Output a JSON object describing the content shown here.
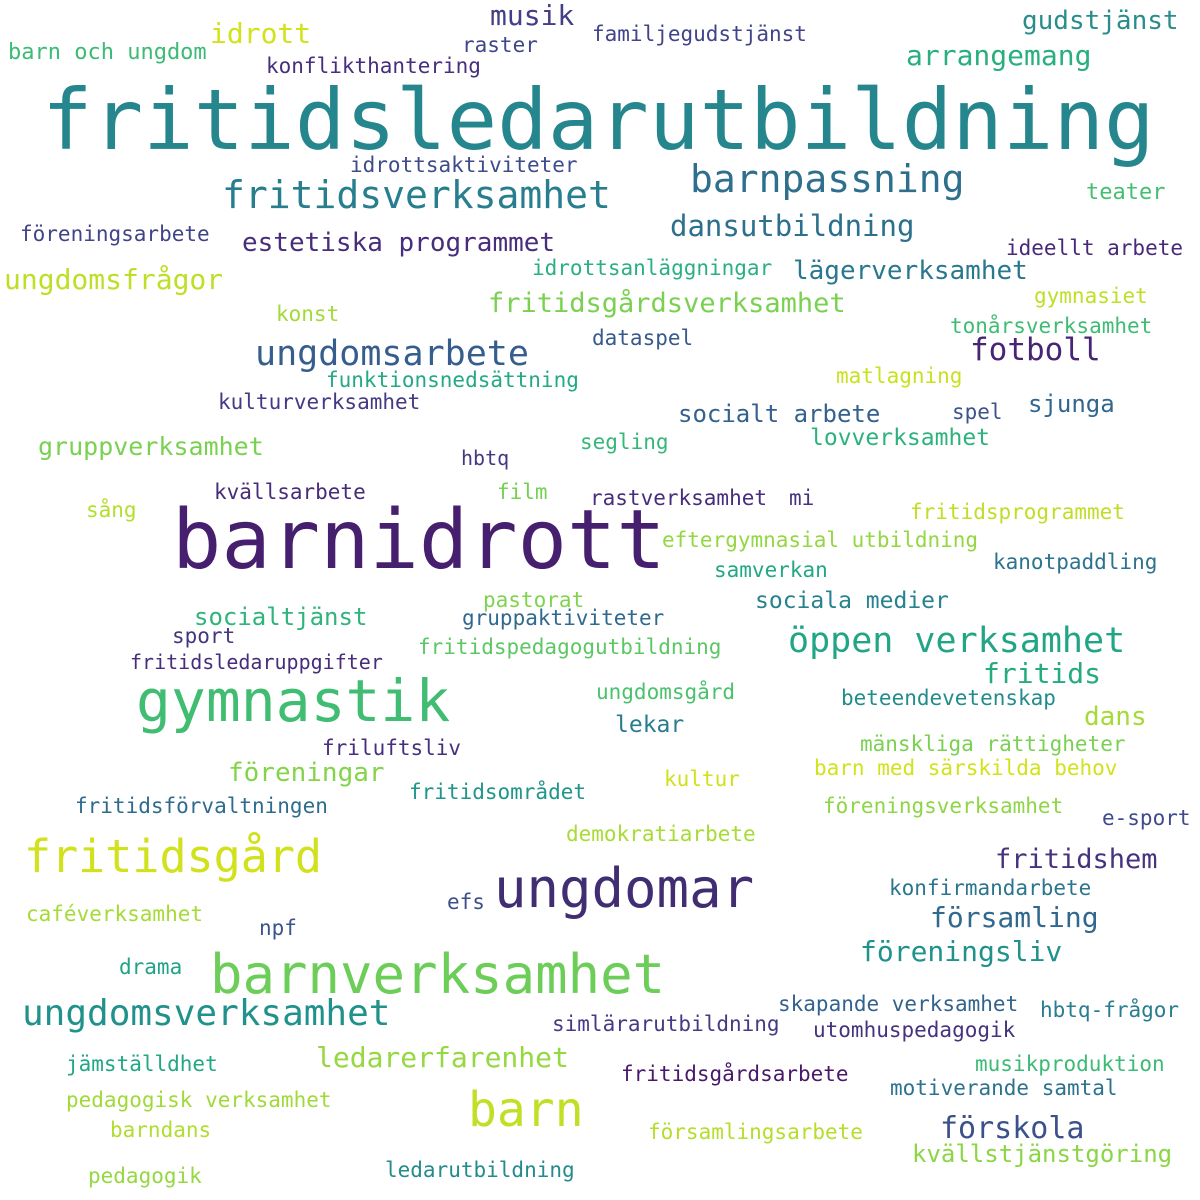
{
  "words": [
    {
      "text": "fritidsledarutbildning",
      "color": "#26868d"
    },
    {
      "text": "barnidrott",
      "color": "#461f6f"
    },
    {
      "text": "gymnastik",
      "color": "#40bd72"
    },
    {
      "text": "ungdomar",
      "color": "#402d72"
    },
    {
      "text": "barnverksamhet",
      "color": "#6ccd59"
    },
    {
      "text": "fritidsgård",
      "color": "#d1e11c"
    },
    {
      "text": "barn",
      "color": "#c0df25"
    },
    {
      "text": "fritidsverksamhet",
      "color": "#277e8e"
    },
    {
      "text": "ungdomsarbete",
      "color": "#355e8d"
    },
    {
      "text": "ungdomsverksamhet",
      "color": "#21918c"
    },
    {
      "text": "öppen verksamhet",
      "color": "#21a585"
    },
    {
      "text": "barnpassning",
      "color": "#2e6f8e"
    },
    {
      "text": "ledarerfarenhet",
      "color": "#95d840"
    },
    {
      "text": "fotboll",
      "color": "#482475"
    },
    {
      "text": "fritidshem",
      "color": "#46327e"
    },
    {
      "text": "dansutbildning",
      "color": "#2d708e"
    },
    {
      "text": "estetiska programmet",
      "color": "#472d7b"
    },
    {
      "text": "ungdomsfrågor",
      "color": "#bddf26"
    },
    {
      "text": "arrangemang",
      "color": "#29af7f"
    },
    {
      "text": "fritidsgårdsverksamhet",
      "color": "#7ad151"
    },
    {
      "text": "lägerverksamhet",
      "color": "#2a788e"
    },
    {
      "text": "musik",
      "color": "#433e85"
    },
    {
      "text": "gudstjänst",
      "color": "#2a8d8c"
    },
    {
      "text": "förskola",
      "color": "#3b518b"
    },
    {
      "text": "församling",
      "color": "#31688e"
    },
    {
      "text": "föreningsliv",
      "color": "#20928c"
    },
    {
      "text": "fritids",
      "color": "#25ab82"
    },
    {
      "text": "dans",
      "color": "#a5db36"
    },
    {
      "text": "föreningar",
      "color": "#84d44b"
    },
    {
      "text": "gruppverksamhet",
      "color": "#7ad151"
    },
    {
      "text": "idrott",
      "color": "#d2e21b"
    },
    {
      "text": "sjunga",
      "color": "#31678e"
    },
    {
      "text": "socialt arbete",
      "color": "#34618d"
    },
    {
      "text": "lovverksamhet",
      "color": "#2db27d"
    },
    {
      "text": "kvällstjänstgöring",
      "color": "#8bd646"
    },
    {
      "text": "socialtjänst",
      "color": "#2fb47c"
    },
    {
      "text": "sociala medier",
      "color": "#26828e"
    },
    {
      "text": "barn och ungdom",
      "color": "#3bbb75"
    },
    {
      "text": "raster",
      "color": "#3f4788"
    },
    {
      "text": "familjegudstjänst",
      "color": "#414487"
    },
    {
      "text": "konflikthantering",
      "color": "#472f7d"
    },
    {
      "text": "idrottsaktiviteter",
      "color": "#3e4c8a"
    },
    {
      "text": "teater",
      "color": "#44bf70"
    },
    {
      "text": "föreningsarbete",
      "color": "#414487"
    },
    {
      "text": "ideellt arbete",
      "color": "#482979"
    },
    {
      "text": "idrottsanläggningar",
      "color": "#2ab07f"
    },
    {
      "text": "gymnasiet",
      "color": "#bddf26"
    },
    {
      "text": "konst",
      "color": "#a2da37"
    },
    {
      "text": "tonårsverksamhet",
      "color": "#3fbc73"
    },
    {
      "text": "dataspel",
      "color": "#38598c"
    },
    {
      "text": "funktionsnedsättning",
      "color": "#23a983"
    },
    {
      "text": "matlagning",
      "color": "#cae11f"
    },
    {
      "text": "kulturverksamhet",
      "color": "#443a83"
    },
    {
      "text": "spel",
      "color": "#3b528b"
    },
    {
      "text": "segling",
      "color": "#35b779"
    },
    {
      "text": "hbtq",
      "color": "#453781"
    },
    {
      "text": "kvällsarbete",
      "color": "#472c7a"
    },
    {
      "text": "film",
      "color": "#75d054"
    },
    {
      "text": "rastverksamhet",
      "color": "#472d7b"
    },
    {
      "text": "mi",
      "color": "#46337f"
    },
    {
      "text": "sång",
      "color": "#b5de2b"
    },
    {
      "text": "fritidsprogrammet",
      "color": "#bddf26"
    },
    {
      "text": "eftergymnasial utbildning",
      "color": "#93d741"
    },
    {
      "text": "kanotpaddling",
      "color": "#2c738e"
    },
    {
      "text": "samverkan",
      "color": "#22a884"
    },
    {
      "text": "pastorat",
      "color": "#7fd34e"
    },
    {
      "text": "gruppaktiviteter",
      "color": "#30698e"
    },
    {
      "text": "sport",
      "color": "#453581"
    },
    {
      "text": "fritidsledaruppgifter",
      "color": "#472d7b"
    },
    {
      "text": "fritidspedagogutbildning",
      "color": "#5cc863"
    },
    {
      "text": "ungdomsgård",
      "color": "#4ac16d"
    },
    {
      "text": "beteendevetenskap",
      "color": "#228c8d"
    },
    {
      "text": "lekar",
      "color": "#287c8e"
    },
    {
      "text": "friluftsliv",
      "color": "#46307e"
    },
    {
      "text": "mänskliga rättigheter",
      "color": "#7ad151"
    },
    {
      "text": "barn med särskilda behov",
      "color": "#d2e21b"
    },
    {
      "text": "kultur",
      "color": "#d0e11c"
    },
    {
      "text": "fritidsförvaltningen",
      "color": "#2f6b8e"
    },
    {
      "text": "fritidsområdet",
      "color": "#1f958b"
    },
    {
      "text": "föreningsverksamhet",
      "color": "#8ed645"
    },
    {
      "text": "e-sport",
      "color": "#3e4a89"
    },
    {
      "text": "demokratiarbete",
      "color": "#a8db34"
    },
    {
      "text": "konfirmandarbete",
      "color": "#2b758e"
    },
    {
      "text": "efs",
      "color": "#3d4e8a"
    },
    {
      "text": "caféverksamhet",
      "color": "#a5db36"
    },
    {
      "text": "npf",
      "color": "#3a548c"
    },
    {
      "text": "drama",
      "color": "#20a386"
    },
    {
      "text": "skapande verksamhet",
      "color": "#33638d"
    },
    {
      "text": "simlärarutbildning",
      "color": "#443b84"
    },
    {
      "text": "hbtq-frågor",
      "color": "#287d8e"
    },
    {
      "text": "utomhuspedagogik",
      "color": "#46327e"
    },
    {
      "text": "jämställdhet",
      "color": "#22a785"
    },
    {
      "text": "musikproduktion",
      "color": "#3cbb75"
    },
    {
      "text": "fritidsgårdsarbete",
      "color": "#48186a"
    },
    {
      "text": "motiverande samtal",
      "color": "#2c728e"
    },
    {
      "text": "pedagogisk verksamhet",
      "color": "#a0da39"
    },
    {
      "text": "barndans",
      "color": "#b0dd2f"
    },
    {
      "text": "församlingsarbete",
      "color": "#b5de2b"
    },
    {
      "text": "pedagogik",
      "color": "#95d840"
    },
    {
      "text": "ledarutbildning",
      "color": "#238a8d"
    }
  ]
}
